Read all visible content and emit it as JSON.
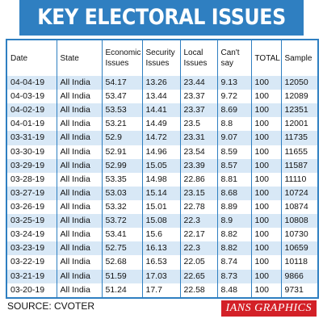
{
  "header": {
    "title": "KEY ELECTORAL ISSUES"
  },
  "table": {
    "columns": [
      "Date",
      "State",
      "Economic Issues",
      "Security Issues",
      "Local Issues",
      "Can't say",
      "TOTAL",
      "Sample"
    ],
    "rows": [
      [
        "04-04-19",
        "All India",
        "54.17",
        "13.26",
        "23.44",
        "9.13",
        "100",
        "12050"
      ],
      [
        "04-03-19",
        "All India",
        "53.47",
        "13.44",
        "23.37",
        "9.72",
        "100",
        "12089"
      ],
      [
        "04-02-19",
        "All India",
        "53.53",
        "14.41",
        "23.37",
        "8.69",
        "100",
        "12351"
      ],
      [
        "04-01-19",
        "All India",
        "53.21",
        "14.49",
        "23.5",
        "8.8",
        "100",
        "12001"
      ],
      [
        "03-31-19",
        "All India",
        "52.9",
        "14.72",
        "23.31",
        "9.07",
        "100",
        "11735"
      ],
      [
        "03-30-19",
        "All India",
        "52.91",
        "14.96",
        "23.54",
        "8.59",
        "100",
        "11655"
      ],
      [
        "03-29-19",
        "All India",
        "52.99",
        "15.05",
        "23.39",
        "8.57",
        "100",
        "11587"
      ],
      [
        "03-28-19",
        "All India",
        "53.35",
        "14.98",
        "22.86",
        "8.81",
        "100",
        "11110"
      ],
      [
        "03-27-19",
        "All India",
        "53.03",
        "15.14",
        "23.15",
        "8.68",
        "100",
        "10724"
      ],
      [
        "03-26-19",
        "All India",
        "53.32",
        "15.01",
        "22.78",
        "8.89",
        "100",
        "10874"
      ],
      [
        "03-25-19",
        "All India",
        "53.72",
        "15.08",
        "22.3",
        "8.9",
        "100",
        "10808"
      ],
      [
        "03-24-19",
        "All India",
        "53.41",
        "15.6",
        "22.17",
        "8.82",
        "100",
        "10730"
      ],
      [
        "03-23-19",
        "All India",
        "52.75",
        "16.13",
        "22.3",
        "8.82",
        "100",
        "10659"
      ],
      [
        "03-22-19",
        "All India",
        "52.68",
        "16.53",
        "22.05",
        "8.74",
        "100",
        "10118"
      ],
      [
        "03-21-19",
        "All India",
        "51.59",
        "17.03",
        "22.65",
        "8.73",
        "100",
        "9866"
      ],
      [
        "03-20-19",
        "All India",
        "51.24",
        "17.7",
        "22.58",
        "8.48",
        "100",
        "9731"
      ]
    ]
  },
  "footer": {
    "source": "SOURCE: CVOTER",
    "credit": "IANS GRAPHICS"
  }
}
